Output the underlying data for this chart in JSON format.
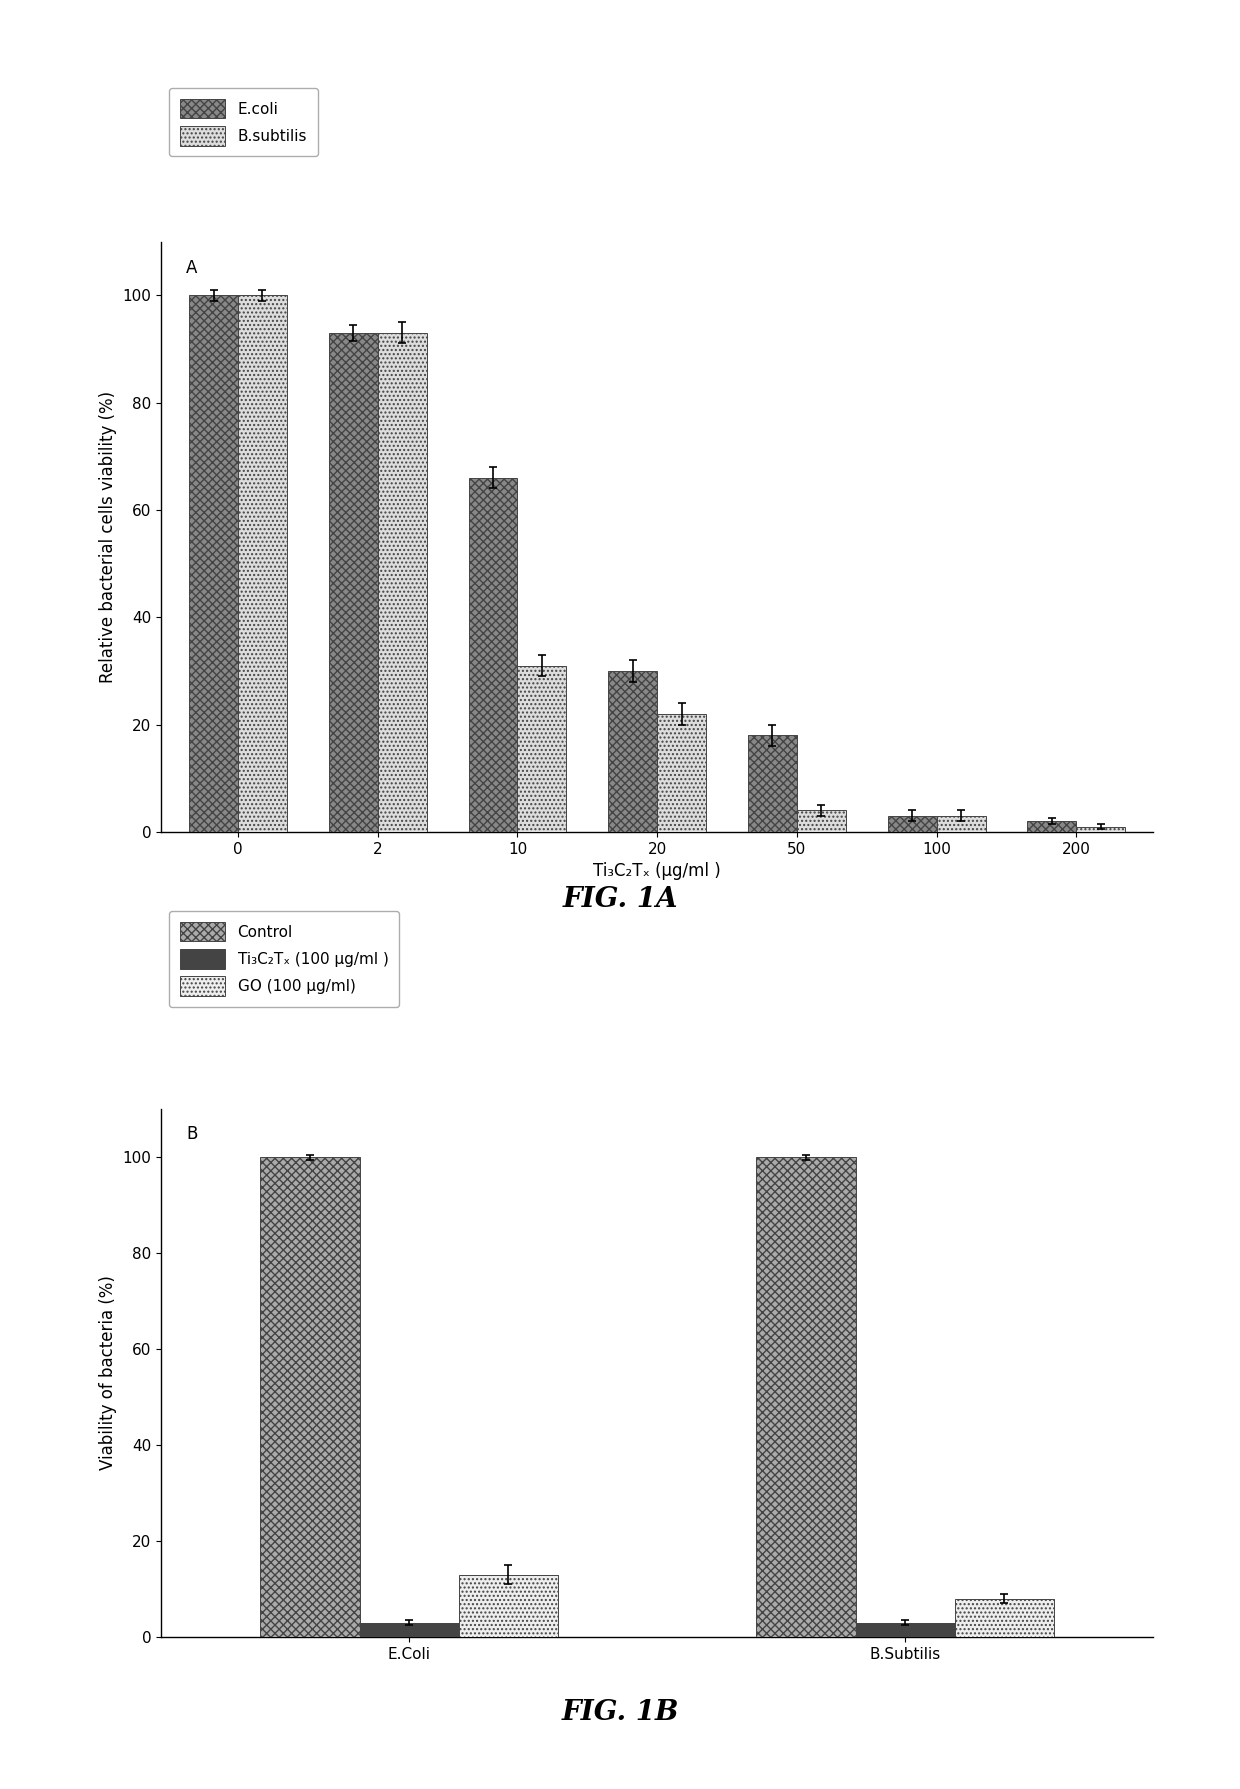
{
  "fig_A": {
    "x_labels": [
      "0",
      "2",
      "10",
      "20",
      "50",
      "100",
      "200"
    ],
    "ecoli_values": [
      100,
      93,
      66,
      30,
      18,
      3,
      2
    ],
    "ecoli_errors": [
      1,
      1.5,
      2,
      2,
      2,
      1,
      0.5
    ],
    "bsubtilis_values": [
      100,
      93,
      31,
      22,
      4,
      3,
      1
    ],
    "bsubtilis_errors": [
      1,
      2,
      2,
      2,
      1,
      1,
      0.5
    ],
    "ylabel": "Relative bacterial cells viability (%)",
    "xlabel": "Ti₃C₂Tₓ (μg/ml )",
    "panel_label": "A",
    "ylim": [
      0,
      110
    ],
    "yticks": [
      0,
      20,
      40,
      60,
      80,
      100
    ],
    "legend_ecoli": "E.coli",
    "legend_bsubtilis": "B.subtilis",
    "fig_label": "FIG. 1A",
    "ecoli_color": "#888888",
    "ecoli_hatch": "xxxx",
    "bsubtilis_color": "#dddddd",
    "bsubtilis_hatch": "....",
    "bar_width": 0.35,
    "bar_edge_color": "#444444"
  },
  "fig_B": {
    "x_labels": [
      "E.Coli",
      "B.Subtilis"
    ],
    "control_values": [
      100,
      100
    ],
    "control_errors": [
      0.5,
      0.5
    ],
    "ti3c2tx_values": [
      3,
      3
    ],
    "ti3c2tx_errors": [
      0.5,
      0.5
    ],
    "go_values": [
      13,
      8
    ],
    "go_errors": [
      2,
      1
    ],
    "ylabel": "Viability of bacteria (%)",
    "panel_label": "B",
    "ylim": [
      0,
      110
    ],
    "yticks": [
      0,
      20,
      40,
      60,
      80,
      100
    ],
    "legend_control": "Control",
    "legend_ti3c2tx": "Ti₃C₂Tₓ (100 μg/ml )",
    "legend_go": "GO (100 μg/ml)",
    "fig_label": "FIG. 1B",
    "control_color": "#aaaaaa",
    "control_hatch": "xxxx",
    "ti3c2tx_color": "#444444",
    "ti3c2tx_hatch": "....",
    "go_color": "#eeeeee",
    "go_hatch": "....",
    "bar_width": 0.2,
    "bar_edge_color": "#444444"
  },
  "background_color": "#ffffff",
  "font_size_axis": 12,
  "font_size_tick": 11,
  "font_size_legend": 11,
  "font_size_panel": 12,
  "font_size_fig_label": 20
}
